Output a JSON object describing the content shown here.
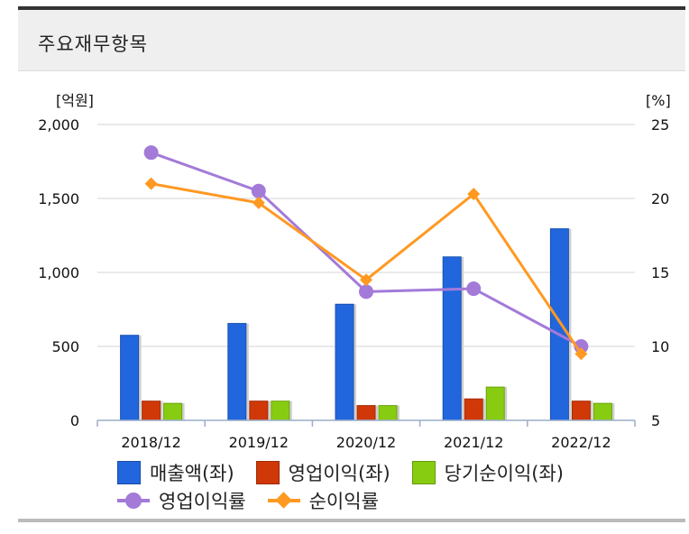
{
  "header": {
    "title": "주요재무항목"
  },
  "chart_data": {
    "type": "bar",
    "categories": [
      "2018/12",
      "2019/12",
      "2020/12",
      "2021/12",
      "2022/12"
    ],
    "left_axis": {
      "unit": "[억원]",
      "min": 0,
      "max": 2000,
      "ticks": [
        0,
        500,
        1000,
        1500,
        2000
      ],
      "tick_labels": [
        "0",
        "500",
        "1,000",
        "1,500",
        "2,000"
      ]
    },
    "right_axis": {
      "unit": "[%]",
      "min": 5,
      "max": 25,
      "ticks": [
        5,
        10,
        15,
        20,
        25
      ],
      "tick_labels": [
        "5",
        "10",
        "15",
        "20",
        "25"
      ]
    },
    "series": [
      {
        "name": "매출액(좌)",
        "kind": "bar",
        "axis": "left",
        "color": "#2266dd",
        "values": [
          575,
          655,
          785,
          1105,
          1295
        ]
      },
      {
        "name": "영업이익(좌)",
        "kind": "bar",
        "axis": "left",
        "color": "#d03808",
        "values": [
          130,
          130,
          100,
          145,
          130
        ]
      },
      {
        "name": "당기순이익(좌)",
        "kind": "bar",
        "axis": "left",
        "color": "#88cc11",
        "values": [
          115,
          130,
          100,
          225,
          115
        ]
      },
      {
        "name": "영업이익률",
        "kind": "line",
        "axis": "right",
        "marker": "circle",
        "color": "#a37ad8",
        "values": [
          23.1,
          20.5,
          13.7,
          13.9,
          10.0
        ]
      },
      {
        "name": "순이익률",
        "kind": "line",
        "axis": "right",
        "marker": "diamond",
        "color": "#ff9922",
        "values": [
          21.0,
          19.7,
          14.5,
          20.3,
          9.5
        ]
      }
    ]
  }
}
